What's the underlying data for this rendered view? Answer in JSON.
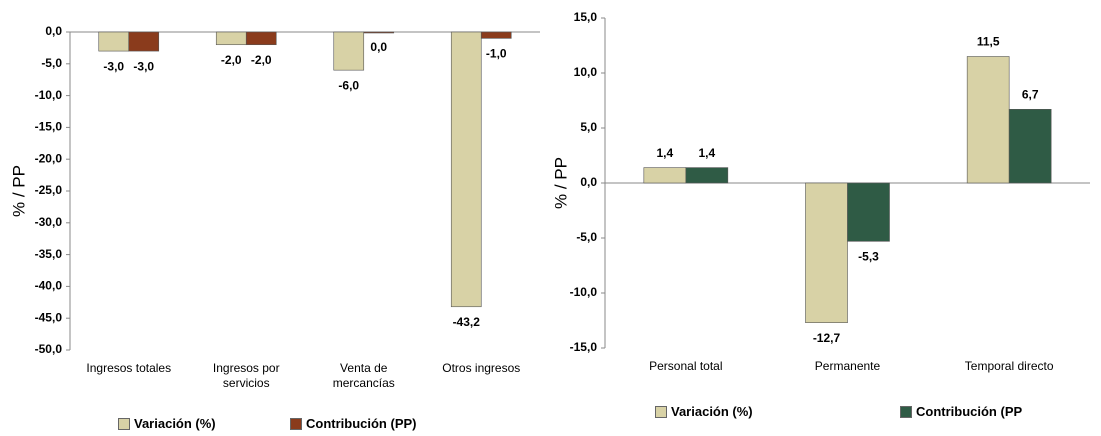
{
  "chart_data": [
    {
      "type": "bar",
      "y_label": "% / PP",
      "categories": [
        "Ingresos totales",
        "Ingresos por servicios",
        "Venta de mercancías",
        "Otros ingresos"
      ],
      "series": [
        {
          "name": "Variación (%)",
          "color": "#d8d2a6",
          "values": [
            -3.0,
            -2.0,
            -6.0,
            -43.2
          ],
          "value_labels": [
            "-3,0",
            "-2,0",
            "-6,0",
            "-43,2"
          ]
        },
        {
          "name": "Contribución (PP)",
          "color": "#8a3b1c",
          "values": [
            -3.0,
            -2.0,
            0.0,
            -1.0
          ],
          "value_labels": [
            "-3,0",
            "-2,0",
            "0,0",
            "-1,0"
          ]
        }
      ],
      "ylim": [
        -50,
        0
      ],
      "yticks": [
        {
          "value": 0,
          "label": "0,0"
        },
        {
          "value": -5,
          "label": "-5,0"
        },
        {
          "value": -10,
          "label": "-10,0"
        },
        {
          "value": -15,
          "label": "-15,0"
        },
        {
          "value": -20,
          "label": "-20,0"
        },
        {
          "value": -25,
          "label": "-25,0"
        },
        {
          "value": -30,
          "label": "-30,0"
        },
        {
          "value": -35,
          "label": "-35,0"
        },
        {
          "value": -40,
          "label": "-40,0"
        },
        {
          "value": -45,
          "label": "-45,0"
        },
        {
          "value": -50,
          "label": "-50,0"
        }
      ]
    },
    {
      "type": "bar",
      "y_label": "% / PP",
      "categories": [
        "Personal total",
        "Permanente",
        "Temporal directo"
      ],
      "series": [
        {
          "name": "Variación (%)",
          "color": "#d8d2a6",
          "values": [
            1.4,
            -12.7,
            11.5
          ],
          "value_labels": [
            "1,4",
            "-12,7",
            "11,5"
          ]
        },
        {
          "name": "Contribución (PP",
          "color": "#2f5b45",
          "values": [
            1.4,
            -5.3,
            6.7
          ],
          "value_labels": [
            "1,4",
            "-5,3",
            "6,7"
          ]
        }
      ],
      "ylim": [
        -15,
        15
      ],
      "yticks": [
        {
          "value": 15,
          "label": "15,0"
        },
        {
          "value": 10,
          "label": "10,0"
        },
        {
          "value": 5,
          "label": "5,0"
        },
        {
          "value": 0,
          "label": "0,0"
        },
        {
          "value": -5,
          "label": "-5,0"
        },
        {
          "value": -10,
          "label": "-10,0"
        },
        {
          "value": -15,
          "label": "-15,0"
        }
      ]
    }
  ]
}
